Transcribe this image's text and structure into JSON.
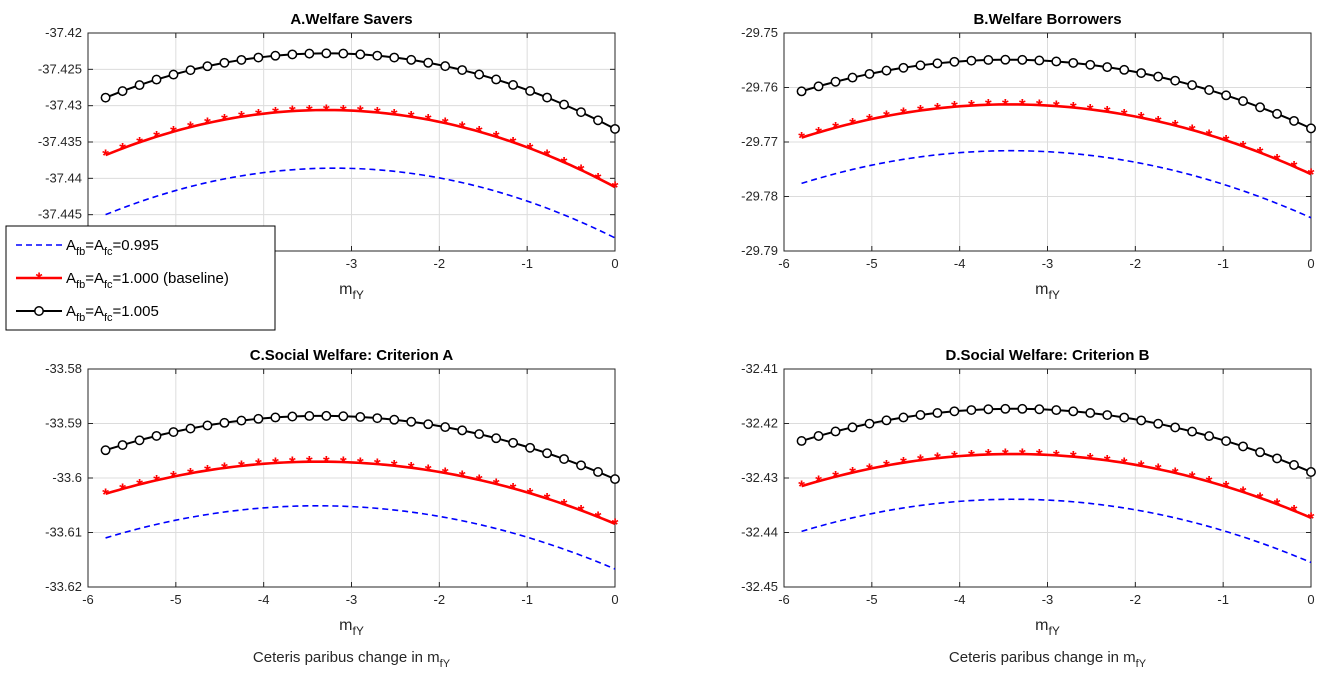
{
  "figure": {
    "legend": {
      "entries": [
        {
          "A": "A",
          "s1": "fb",
          "mid": "=A",
          "s2": "fc",
          "rest": "=0.995"
        },
        {
          "A": "A",
          "s1": "fb",
          "mid": "=A",
          "s2": "fc",
          "rest": "=1.000 (baseline)"
        },
        {
          "A": "A",
          "s1": "fb",
          "mid": "=A",
          "s2": "fc",
          "rest": "=1.005"
        }
      ]
    }
  },
  "colors": {
    "dashed": "#0000ff",
    "baseline": "#ff0000",
    "high": "#000000",
    "grid": "#dcdcdc"
  },
  "chart_data": [
    {
      "type": "line",
      "title": "A.Welfare Savers",
      "xlabel_main": "m",
      "xlabel_sub": "fY",
      "bottom_caption": null,
      "xlim": [
        -6,
        0
      ],
      "ylim": [
        -37.45,
        -37.42
      ],
      "xticks": [
        -6,
        -5,
        -4,
        -3,
        -2,
        -1,
        0
      ],
      "yticks": [
        -37.42,
        -37.425,
        -37.43,
        -37.435,
        -37.44,
        -37.445,
        -37.45
      ],
      "ytick_labels": [
        "-37.42",
        "-37.425",
        "-37.43",
        "-37.435",
        "-37.44",
        "-37.445",
        ""
      ],
      "xtick_labels": [
        "",
        "",
        "",
        "-3",
        "-2",
        "-1",
        "0"
      ],
      "x": [
        -5.8,
        -0.0
      ],
      "series": [
        {
          "style": "dashed",
          "y_left": -37.445,
          "y_top": -37.4386,
          "y_right": -37.4482
        },
        {
          "style": "baseline",
          "y_left": -37.4368,
          "y_top": -37.4306,
          "y_right": -37.4412
        },
        {
          "style": "high",
          "y_left": -37.4289,
          "y_top": -37.4228,
          "y_right": -37.4332
        }
      ]
    },
    {
      "type": "line",
      "title": "B.Welfare Borrowers",
      "xlabel_main": "m",
      "xlabel_sub": "fY",
      "bottom_caption": null,
      "xlim": [
        -6,
        0
      ],
      "ylim": [
        -29.79,
        -29.75
      ],
      "xticks": [
        -6,
        -5,
        -4,
        -3,
        -2,
        -1,
        0
      ],
      "yticks": [
        -29.75,
        -29.76,
        -29.77,
        -29.78,
        -29.79
      ],
      "ytick_labels": [
        "-29.75",
        "-29.76",
        "-29.77",
        "-29.78",
        "-29.79"
      ],
      "xtick_labels": [
        "-6",
        "-5",
        "-4",
        "-3",
        "-2",
        "-1",
        "0"
      ],
      "x": [
        -5.8,
        0.0
      ],
      "series": [
        {
          "style": "dashed",
          "y_left": -29.7776,
          "y_top": -29.7716,
          "y_right": -29.7839
        },
        {
          "style": "baseline",
          "y_left": -29.7692,
          "y_top": -29.7631,
          "y_right": -29.7759
        },
        {
          "style": "high",
          "y_left": -29.7607,
          "y_top": -29.7549,
          "y_right": -29.7675
        }
      ]
    },
    {
      "type": "line",
      "title": "C.Social Welfare: Criterion A",
      "xlabel_main": "m",
      "xlabel_sub": "fY",
      "bottom_caption": {
        "main": "Ceteris paribus change in m",
        "sub": "fY"
      },
      "xlim": [
        -6,
        0
      ],
      "ylim": [
        -33.62,
        -33.58
      ],
      "xticks": [
        -6,
        -5,
        -4,
        -3,
        -2,
        -1,
        0
      ],
      "yticks": [
        -33.58,
        -33.59,
        -33.6,
        -33.61,
        -33.62
      ],
      "ytick_labels": [
        "-33.58",
        "-33.59",
        "-33.6",
        "-33.61",
        "-33.62"
      ],
      "xtick_labels": [
        "-6",
        "-5",
        "-4",
        "-3",
        "-2",
        "-1",
        "0"
      ],
      "x": [
        -5.8,
        0.0
      ],
      "series": [
        {
          "style": "dashed",
          "y_left": -33.611,
          "y_top": -33.6051,
          "y_right": -33.6167
        },
        {
          "style": "baseline",
          "y_left": -33.6029,
          "y_top": -33.597,
          "y_right": -33.6084
        },
        {
          "style": "high",
          "y_left": -33.5949,
          "y_top": -33.5886,
          "y_right": -33.6002
        }
      ]
    },
    {
      "type": "line",
      "title": "D.Social Welfare: Criterion B",
      "xlabel_main": "m",
      "xlabel_sub": "fY",
      "bottom_caption": {
        "main": "Ceteris paribus change in m",
        "sub": "fY"
      },
      "xlim": [
        -6,
        0
      ],
      "ylim": [
        -32.45,
        -32.41
      ],
      "xticks": [
        -6,
        -5,
        -4,
        -3,
        -2,
        -1,
        0
      ],
      "yticks": [
        -32.41,
        -32.42,
        -32.43,
        -32.44,
        -32.45
      ],
      "ytick_labels": [
        "-32.41",
        "-32.42",
        "-32.43",
        "-32.44",
        "-32.45"
      ],
      "xtick_labels": [
        "-6",
        "-5",
        "-4",
        "-3",
        "-2",
        "-1",
        "0"
      ],
      "x": [
        -5.8,
        0.0
      ],
      "series": [
        {
          "style": "dashed",
          "y_left": -32.4398,
          "y_top": -32.4339,
          "y_right": -32.4455
        },
        {
          "style": "baseline",
          "y_left": -32.4315,
          "y_top": -32.4256,
          "y_right": -32.4373
        },
        {
          "style": "high",
          "y_left": -32.4232,
          "y_top": -32.4173,
          "y_right": -32.4289
        }
      ]
    }
  ]
}
